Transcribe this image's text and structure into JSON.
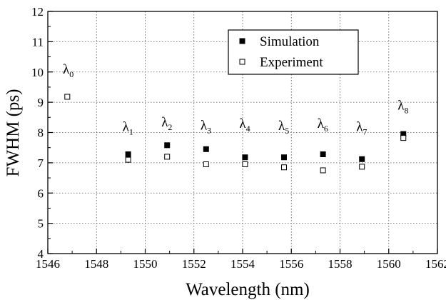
{
  "chart_data": {
    "type": "scatter",
    "xlabel": "Wavelength (nm)",
    "ylabel": "FWHM (ps)",
    "xlim": [
      1546,
      1562
    ],
    "ylim": [
      4,
      12
    ],
    "xticks": [
      "1546",
      "1548",
      "1550",
      "1552",
      "1554",
      "1556",
      "1558",
      "1560",
      "1562"
    ],
    "yticks": [
      "4",
      "5",
      "6",
      "7",
      "8",
      "9",
      "10",
      "11",
      "12"
    ],
    "grid": true,
    "legend_position": "top-right",
    "series": [
      {
        "name": "Simulation",
        "marker": "filled-square",
        "color": "#000000",
        "x": [
          1549.3,
          1550.9,
          1552.5,
          1554.1,
          1555.7,
          1557.3,
          1558.9,
          1560.6
        ],
        "y": [
          7.28,
          7.58,
          7.45,
          7.18,
          7.18,
          7.28,
          7.12,
          7.95
        ]
      },
      {
        "name": "Experiment",
        "marker": "open-square",
        "color": "#000000",
        "x": [
          1546.8,
          1549.3,
          1550.9,
          1552.5,
          1554.1,
          1555.7,
          1557.3,
          1558.9,
          1560.6
        ],
        "y": [
          9.18,
          7.1,
          7.2,
          6.95,
          6.95,
          6.85,
          6.75,
          6.87,
          7.82
        ]
      }
    ],
    "annotations": [
      {
        "base": "λ",
        "sub": "0",
        "x": 1546.85,
        "y": 9.95
      },
      {
        "base": "λ",
        "sub": "1",
        "x": 1549.3,
        "y": 8.05
      },
      {
        "base": "λ",
        "sub": "2",
        "x": 1550.9,
        "y": 8.2
      },
      {
        "base": "λ",
        "sub": "3",
        "x": 1552.5,
        "y": 8.1
      },
      {
        "base": "λ",
        "sub": "4",
        "x": 1554.1,
        "y": 8.15
      },
      {
        "base": "λ",
        "sub": "5",
        "x": 1555.7,
        "y": 8.08
      },
      {
        "base": "λ",
        "sub": "6",
        "x": 1557.3,
        "y": 8.15
      },
      {
        "base": "λ",
        "sub": "7",
        "x": 1558.9,
        "y": 8.05
      },
      {
        "base": "λ",
        "sub": "8",
        "x": 1560.6,
        "y": 8.75
      }
    ]
  }
}
